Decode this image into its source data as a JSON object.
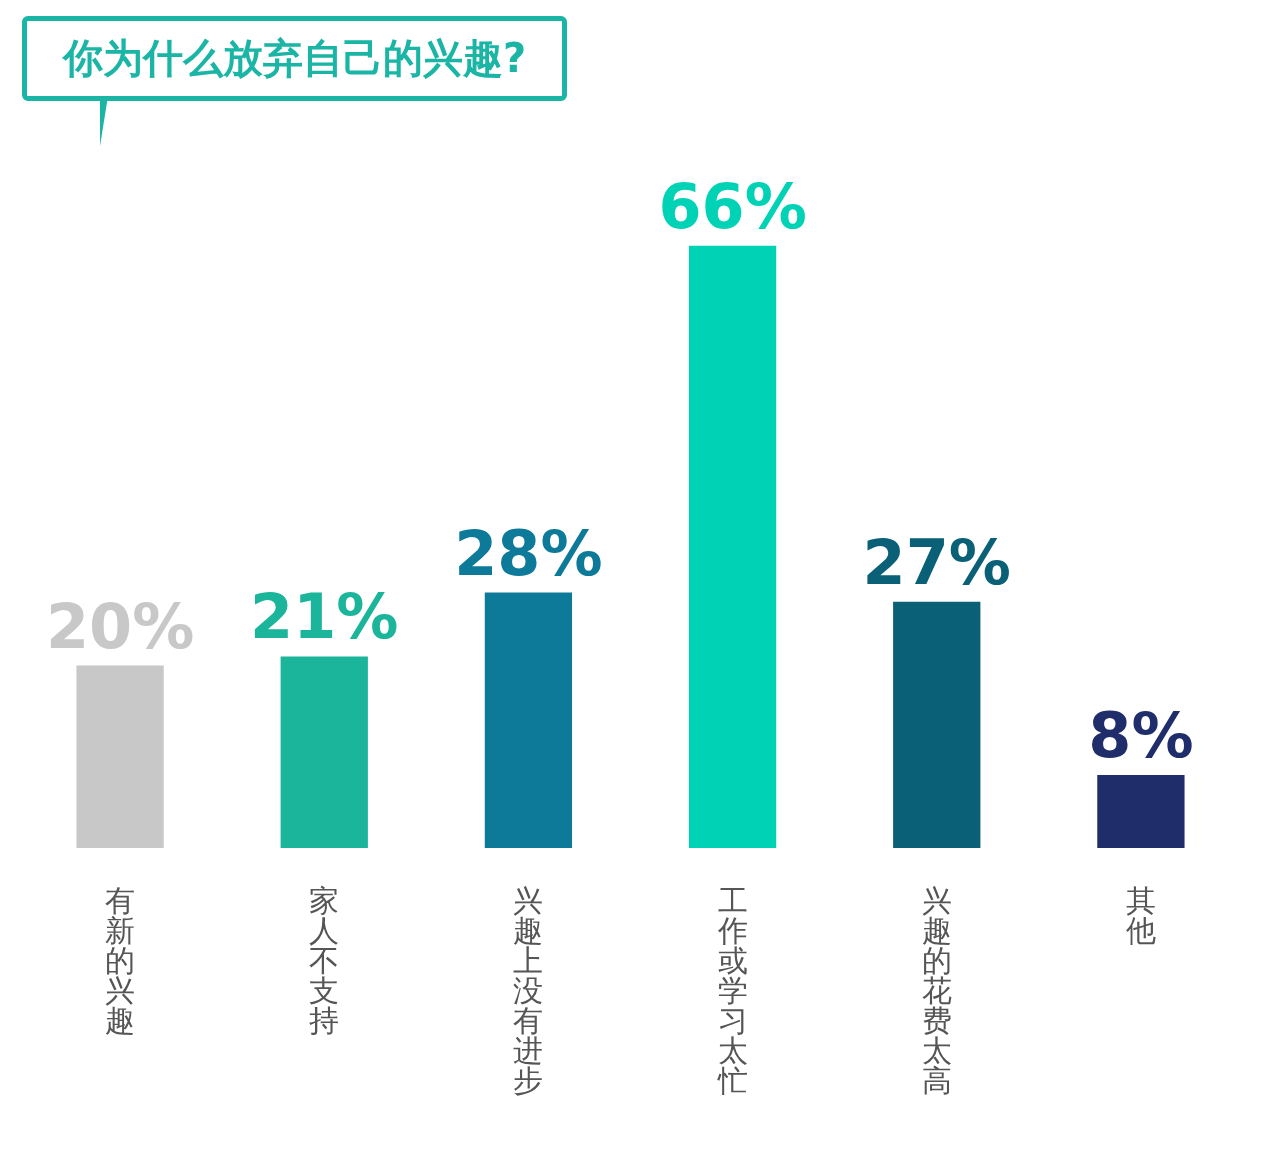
{
  "chart_data": {
    "type": "bar",
    "title": "你为什么放弃自己的兴趣?",
    "categories": [
      "有新的兴趣",
      "家人不支持",
      "兴趣上没有进步",
      "工作或学习太忙",
      "兴趣的花费太高",
      "其他"
    ],
    "values": [
      20,
      21,
      28,
      66,
      27,
      8
    ],
    "colors": [
      "#c8c8c8",
      "#1ab59a",
      "#0e7a9a",
      "#00d3b5",
      "#0a6077",
      "#1f2d6b"
    ],
    "value_labels": [
      "20%",
      "21%",
      "28%",
      "66%",
      "27%",
      "8%"
    ],
    "grid": false,
    "legend": false
  }
}
